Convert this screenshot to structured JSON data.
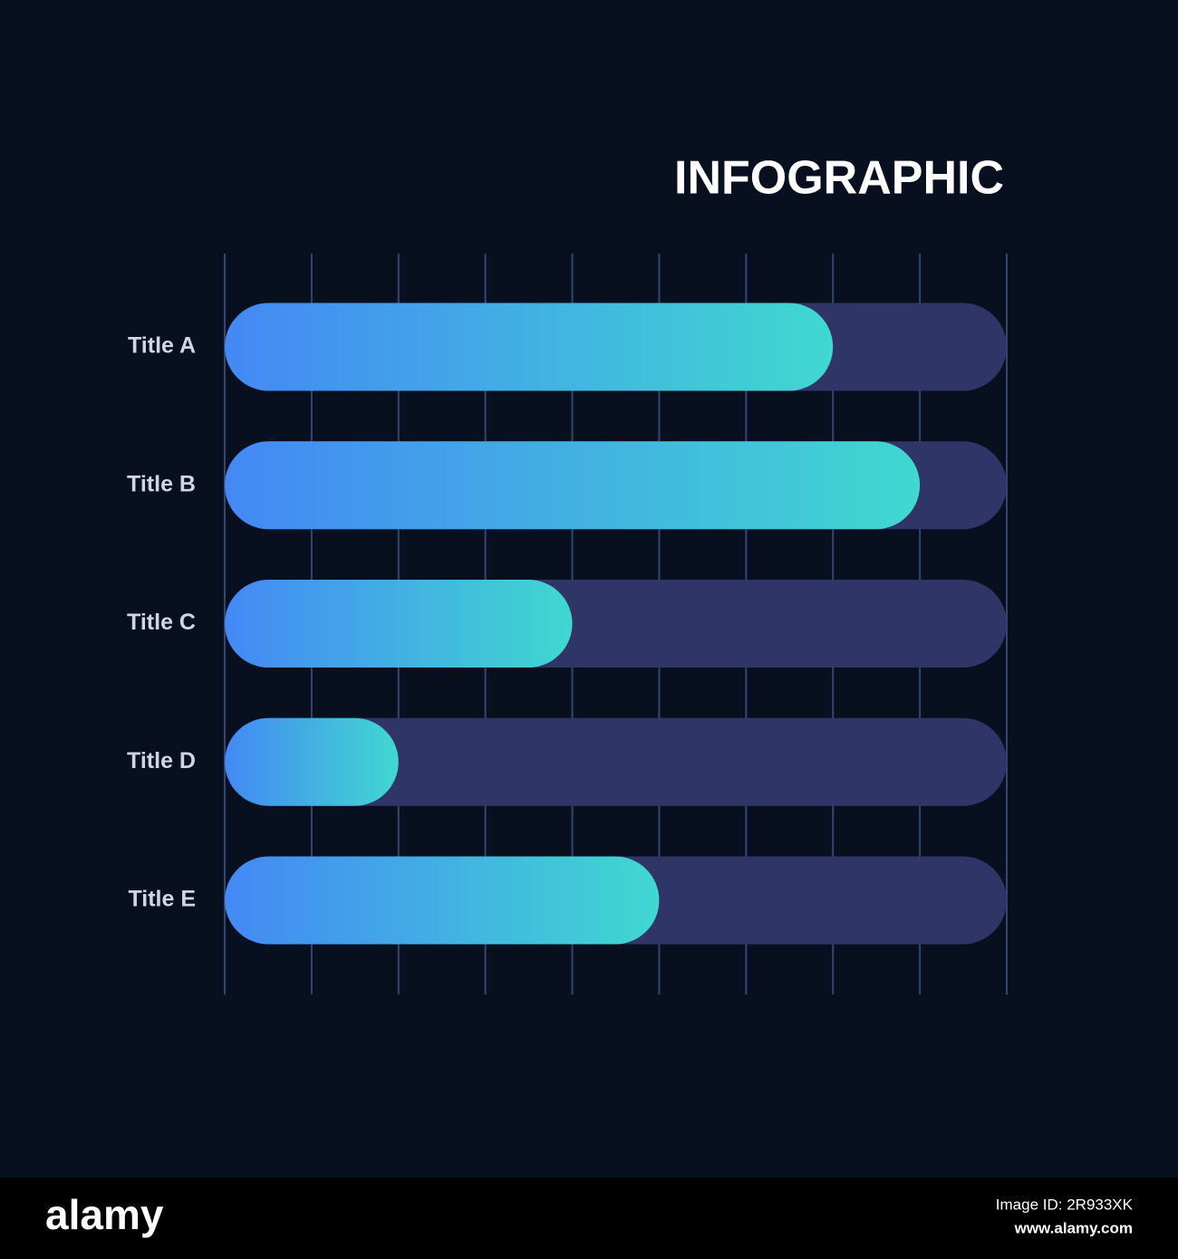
{
  "chart_data": {
    "type": "bar",
    "orientation": "horizontal",
    "title": "INFOGRAPHIC",
    "categories": [
      "Title A",
      "Title B",
      "Title C",
      "Title D",
      "Title E"
    ],
    "values": [
      7,
      8,
      4,
      2,
      5
    ],
    "color": [
      "#4488f5",
      "#40d8d0"
    ],
    "track_color": "#2f3566",
    "xlim": [
      0,
      9
    ],
    "xticks": [
      0,
      1,
      2,
      3,
      4,
      5,
      6,
      7,
      8,
      9
    ],
    "grid": true
  },
  "footer": {
    "brand": "alamy",
    "image_id": "Image ID: 2R933XK",
    "url": "www.alamy.com"
  }
}
